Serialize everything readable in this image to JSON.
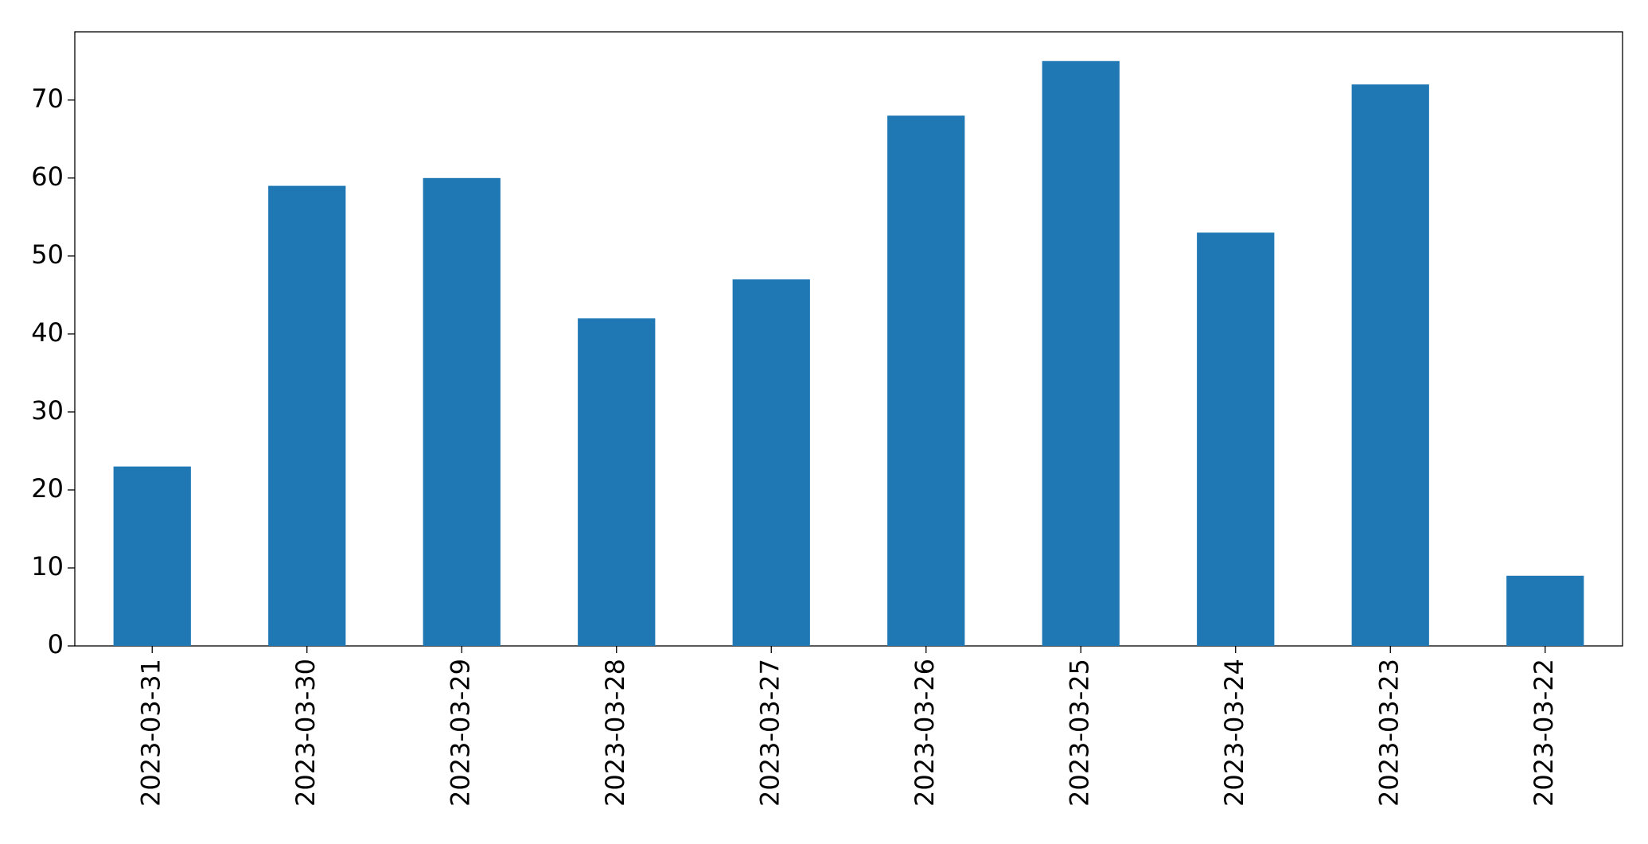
{
  "chart_data": {
    "type": "bar",
    "categories": [
      "2023-03-31",
      "2023-03-30",
      "2023-03-29",
      "2023-03-28",
      "2023-03-27",
      "2023-03-26",
      "2023-03-25",
      "2023-03-24",
      "2023-03-23",
      "2023-03-22"
    ],
    "values": [
      23,
      59,
      60,
      42,
      47,
      68,
      75,
      53,
      72,
      9
    ],
    "color": "#1f77b4",
    "ylim": [
      0,
      78.75
    ],
    "yticks": [
      0,
      10,
      20,
      30,
      40,
      50,
      60,
      70
    ],
    "grid": false
  }
}
